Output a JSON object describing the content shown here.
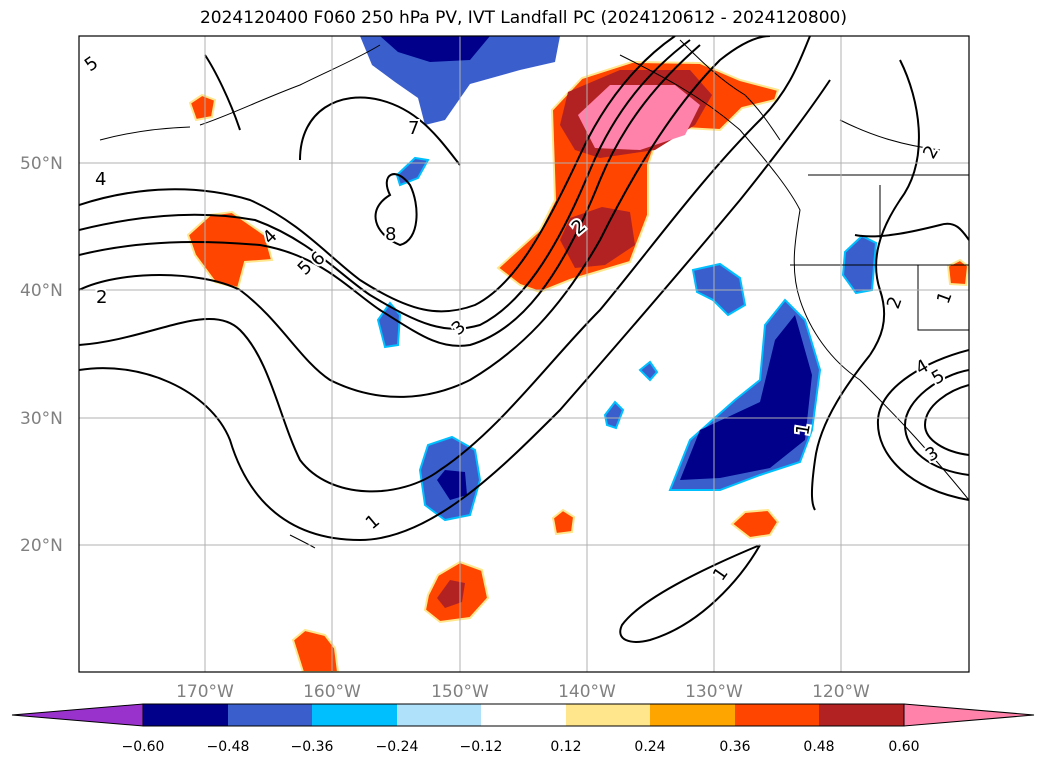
{
  "title": "2024120400 F060 250 hPa PV, IVT Landfall PC (2024120612 - 2024120800)",
  "latitude_labels": [
    "50°N",
    "40°N",
    "30°N",
    "20°N"
  ],
  "longitude_labels": [
    "170°W",
    "160°W",
    "150°W",
    "140°W",
    "130°W",
    "120°W"
  ],
  "colorbar": {
    "tick_labels": [
      "−0.60",
      "−0.48",
      "−0.36",
      "−0.24",
      "−0.12",
      "0.12",
      "0.24",
      "0.36",
      "0.48",
      "0.60"
    ],
    "colors": [
      "#9932cc",
      "#00008b",
      "#3a5fcd",
      "#00bfff",
      "#afe1fa",
      "#ffffff",
      "#ffe68c",
      "#ffa500",
      "#ff4500",
      "#b22222",
      "#ff82ab"
    ]
  },
  "contour_labels": [
    "5",
    "4",
    "7",
    "8",
    "6",
    "5",
    "4",
    "2",
    "3",
    "1",
    "1",
    "2",
    "2",
    "1",
    "4",
    "5",
    "3",
    "1",
    "2"
  ],
  "chart_data": {
    "type": "map",
    "title": "2024120400 F060 250 hPa PV, IVT Landfall PC (2024120612 - 2024120800)",
    "lat_range": [
      10,
      60
    ],
    "lon_range": [
      -180,
      -110
    ],
    "grid": true,
    "shaded_field_levels": [
      -0.6,
      -0.48,
      -0.36,
      -0.24,
      -0.12,
      0.12,
      0.24,
      0.36,
      0.48,
      0.6
    ],
    "contour_levels_labeled": [
      1,
      2,
      3,
      4,
      5,
      6,
      7,
      8
    ]
  }
}
